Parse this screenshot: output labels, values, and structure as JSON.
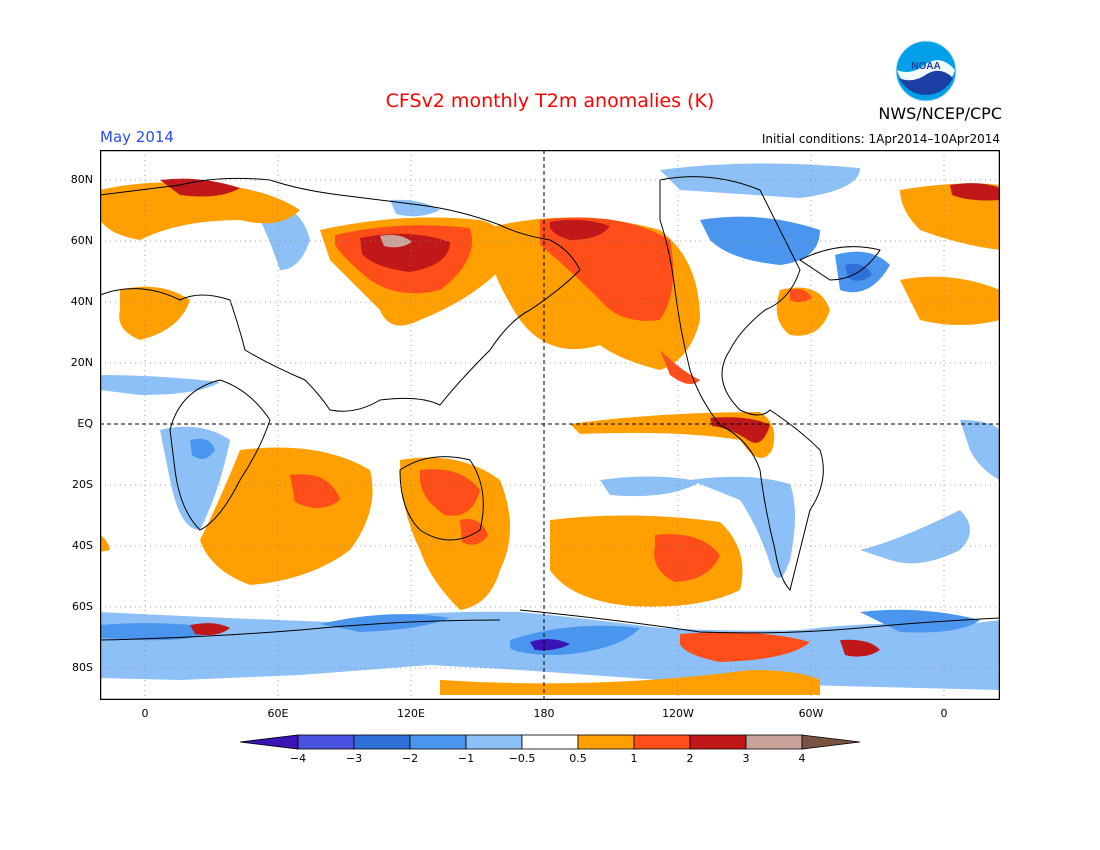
{
  "header": {
    "title": "CFSv2 monthly T2m anomalies (K)",
    "month": "May 2014",
    "initial_conditions": "Initial conditions: 1Apr2014–10Apr2014",
    "organization": "NWS/NCEP/CPC",
    "logo_text": "NOAA"
  },
  "axes": {
    "lat_labels": [
      "80N",
      "60N",
      "40N",
      "20N",
      "EQ",
      "20S",
      "40S",
      "60S",
      "80S"
    ],
    "lon_labels": [
      "0",
      "60E",
      "120E",
      "180",
      "120W",
      "60W",
      "0"
    ]
  },
  "colorbar": {
    "labels": [
      "−4",
      "−3",
      "−2",
      "−1",
      "−0.5",
      "0.5",
      "1",
      "2",
      "3",
      "4"
    ],
    "colors": [
      "#3a14b4",
      "#4a50e0",
      "#2f6fd8",
      "#4a96ee",
      "#8cc0f6",
      "#ffffff",
      "#ffa000",
      "#ff4e1a",
      "#c01818",
      "#c8a49a",
      "#7a5244"
    ]
  }
}
